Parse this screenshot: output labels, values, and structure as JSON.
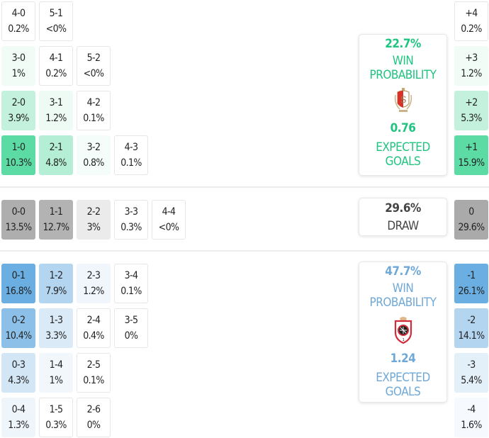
{
  "home_wins": [
    {
      "score": "4-0",
      "pct": "0.2%",
      "bg": "#ffffff"
    },
    {
      "score": "5-1",
      "pct": "<0%",
      "bg": "#ffffff"
    },
    {
      "score": "3-0",
      "pct": "1%",
      "bg": "#f1fcf7"
    },
    {
      "score": "4-1",
      "pct": "0.2%",
      "bg": "#ffffff"
    },
    {
      "score": "5-2",
      "pct": "<0%",
      "bg": "#ffffff"
    },
    {
      "score": "2-0",
      "pct": "3.9%",
      "bg": "#c4f1dd"
    },
    {
      "score": "3-1",
      "pct": "1.2%",
      "bg": "#eefbf5"
    },
    {
      "score": "4-2",
      "pct": "0.1%",
      "bg": "#ffffff"
    },
    {
      "score": "1-0",
      "pct": "10.3%",
      "bg": "#5ddba5"
    },
    {
      "score": "2-1",
      "pct": "4.8%",
      "bg": "#b4eed4"
    },
    {
      "score": "3-2",
      "pct": "0.8%",
      "bg": "#f4fdf9"
    },
    {
      "score": "4-3",
      "pct": "0.1%",
      "bg": "#ffffff"
    }
  ],
  "draws": [
    {
      "score": "0-0",
      "pct": "13.5%",
      "bg": "#aeaeae"
    },
    {
      "score": "1-1",
      "pct": "12.7%",
      "bg": "#b3b3b3"
    },
    {
      "score": "2-2",
      "pct": "3%",
      "bg": "#ebebeb"
    },
    {
      "score": "3-3",
      "pct": "0.3%",
      "bg": "#ffffff"
    },
    {
      "score": "4-4",
      "pct": "<0%",
      "bg": "#ffffff"
    }
  ],
  "away_wins": [
    {
      "score": "0-1",
      "pct": "16.8%",
      "bg": "#6aaee2"
    },
    {
      "score": "1-2",
      "pct": "7.9%",
      "bg": "#b3d5f0"
    },
    {
      "score": "2-3",
      "pct": "1.2%",
      "bg": "#f0f6fc"
    },
    {
      "score": "3-4",
      "pct": "0.1%",
      "bg": "#ffffff"
    },
    {
      "score": "0-2",
      "pct": "10.4%",
      "bg": "#8cc0e8"
    },
    {
      "score": "1-3",
      "pct": "3.3%",
      "bg": "#dbeaf7"
    },
    {
      "score": "2-4",
      "pct": "0.4%",
      "bg": "#ffffff"
    },
    {
      "score": "3-5",
      "pct": "0%",
      "bg": "#ffffff"
    },
    {
      "score": "0-3",
      "pct": "4.3%",
      "bg": "#d3e6f6"
    },
    {
      "score": "1-4",
      "pct": "1%",
      "bg": "#f2f7fc"
    },
    {
      "score": "2-5",
      "pct": "0.1%",
      "bg": "#ffffff"
    },
    {
      "score": "0-4",
      "pct": "1.3%",
      "bg": "#eef5fb"
    },
    {
      "score": "1-5",
      "pct": "0.3%",
      "bg": "#ffffff"
    },
    {
      "score": "2-6",
      "pct": "0%",
      "bg": "#ffffff"
    }
  ],
  "margins": [
    {
      "label": "+4",
      "pct": "0.2%",
      "bg": "#ffffff"
    },
    {
      "label": "+3",
      "pct": "1.2%",
      "bg": "#f1fcf7"
    },
    {
      "label": "+2",
      "pct": "5.3%",
      "bg": "#c4f1dd"
    },
    {
      "label": "+1",
      "pct": "15.9%",
      "bg": "#5ddba5"
    },
    {
      "label": "0",
      "pct": "29.6%",
      "bg": "#aaaaaa"
    },
    {
      "label": "-1",
      "pct": "26.1%",
      "bg": "#6aaee2"
    },
    {
      "label": "-2",
      "pct": "14.1%",
      "bg": "#b3d5f0"
    },
    {
      "label": "-3",
      "pct": "5.4%",
      "bg": "#e3eff9"
    },
    {
      "label": "-4",
      "pct": "1.6%",
      "bg": "#f6f9fd"
    }
  ],
  "home_card": {
    "win_pct": "22.7%",
    "win_label_1": "WIN",
    "win_label_2": "PROBABILITY",
    "crest": "standard-liege-crest",
    "xg": "0.76",
    "xg_label_1": "EXPECTED",
    "xg_label_2": "GOALS",
    "color": "#1ec47f"
  },
  "draw_card": {
    "pct": "29.6%",
    "label": "DRAW"
  },
  "away_card": {
    "win_pct": "47.7%",
    "win_label_1": "WIN",
    "win_label_2": "PROBABILITY",
    "crest": "royal-antwerp-crest",
    "xg": "1.24",
    "xg_label_1": "EXPECTED",
    "xg_label_2": "GOALS",
    "color": "#6fa8d6"
  }
}
